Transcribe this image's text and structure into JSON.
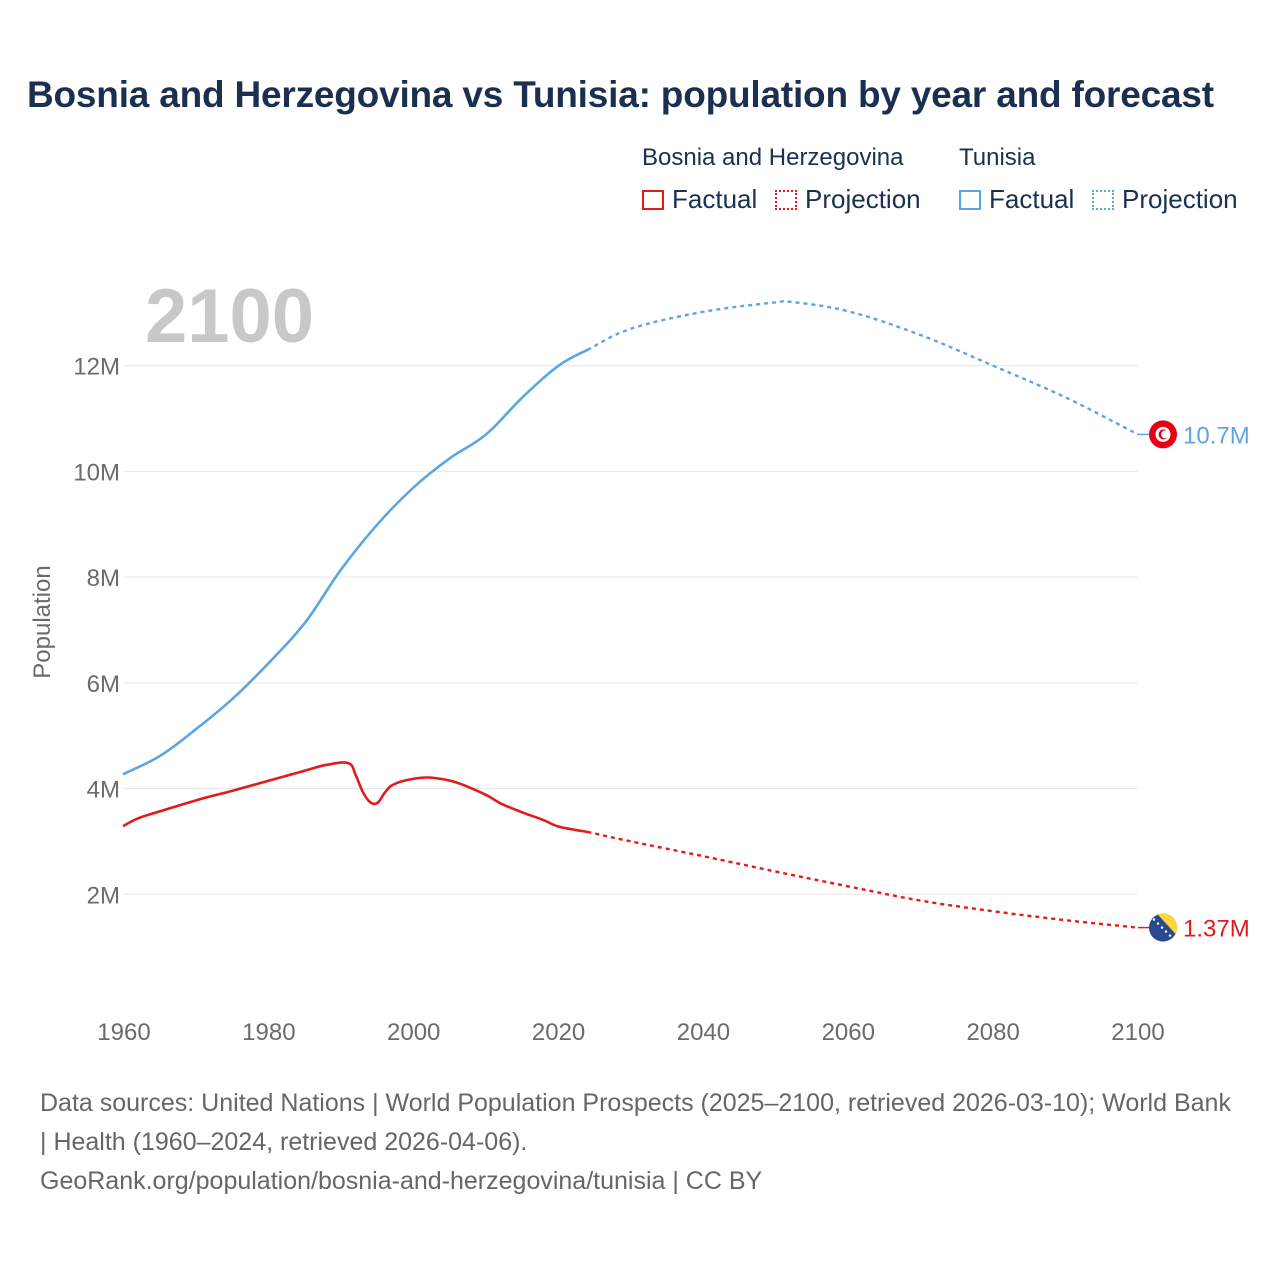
{
  "title": "Bosnia and Herzegovina vs Tunisia: population by year and forecast",
  "legend": {
    "groups": [
      {
        "name": "Bosnia and Herzegovina",
        "color": "#e31a1c",
        "factual_label": "Factual",
        "projection_label": "Projection"
      },
      {
        "name": "Tunisia",
        "color": "#5ca5e4",
        "factual_label": "Factual",
        "projection_label": "Projection"
      }
    ]
  },
  "year_watermark": "2100",
  "end_labels": {
    "tunisia": "10.7M",
    "bosnia": "1.37M"
  },
  "colors": {
    "bosnia": "#e31a1c",
    "tunisia": "#5ca5e4",
    "grid": "#e6e6e6",
    "tick_text": "#6b6b6b",
    "watermark": "#c8c8c8"
  },
  "icons": {
    "tunisia_marker": "tunisia-flag-icon",
    "bosnia_marker": "bosnia-flag-icon"
  },
  "source": {
    "line1": "Data sources: United Nations | World Population Prospects (2025–2100, retrieved 2026-03-10); World Bank | Health (1960–2024, retrieved 2026-04-06).",
    "line2": "GeoRank.org/population/bosnia-and-herzegovina/tunisia | CC BY"
  },
  "chart_data": {
    "type": "line",
    "title": "Bosnia and Herzegovina vs Tunisia: population by year and forecast",
    "xlabel": "",
    "ylabel": "Population",
    "xlim": [
      1960,
      2100
    ],
    "ylim": [
      0,
      14000000
    ],
    "x_ticks": [
      1960,
      1980,
      2000,
      2020,
      2040,
      2060,
      2080,
      2100
    ],
    "x_tick_labels": [
      "1960",
      "1980",
      "2000",
      "2020",
      "2040",
      "2060",
      "2080",
      "2100"
    ],
    "y_ticks": [
      2000000,
      4000000,
      6000000,
      8000000,
      10000000,
      12000000
    ],
    "y_tick_labels": [
      "2M",
      "4M",
      "6M",
      "8M",
      "10M",
      "12M"
    ],
    "grid": true,
    "legend_position": "top-right",
    "factual_end_year": 2024,
    "series": [
      {
        "name": "Tunisia",
        "color": "#5ca5e4",
        "points": [
          [
            1960,
            4280000
          ],
          [
            1965,
            4620000
          ],
          [
            1970,
            5130000
          ],
          [
            1975,
            5700000
          ],
          [
            1980,
            6380000
          ],
          [
            1985,
            7140000
          ],
          [
            1990,
            8150000
          ],
          [
            1995,
            9000000
          ],
          [
            2000,
            9700000
          ],
          [
            2005,
            10250000
          ],
          [
            2010,
            10700000
          ],
          [
            2015,
            11400000
          ],
          [
            2020,
            12000000
          ],
          [
            2024,
            12300000
          ],
          [
            2030,
            12700000
          ],
          [
            2040,
            13020000
          ],
          [
            2050,
            13200000
          ],
          [
            2052,
            13210000
          ],
          [
            2060,
            13030000
          ],
          [
            2070,
            12580000
          ],
          [
            2080,
            12000000
          ],
          [
            2090,
            11400000
          ],
          [
            2100,
            10700000
          ]
        ]
      },
      {
        "name": "Bosnia and Herzegovina",
        "color": "#e31a1c",
        "points": [
          [
            1960,
            3300000
          ],
          [
            1962,
            3440000
          ],
          [
            1965,
            3570000
          ],
          [
            1970,
            3780000
          ],
          [
            1975,
            3960000
          ],
          [
            1980,
            4150000
          ],
          [
            1985,
            4340000
          ],
          [
            1988,
            4450000
          ],
          [
            1991,
            4480000
          ],
          [
            1992,
            4250000
          ],
          [
            1993,
            3930000
          ],
          [
            1994,
            3740000
          ],
          [
            1995,
            3730000
          ],
          [
            1996,
            3920000
          ],
          [
            1997,
            4060000
          ],
          [
            1999,
            4160000
          ],
          [
            2002,
            4210000
          ],
          [
            2005,
            4150000
          ],
          [
            2007,
            4060000
          ],
          [
            2010,
            3880000
          ],
          [
            2012,
            3720000
          ],
          [
            2015,
            3550000
          ],
          [
            2018,
            3400000
          ],
          [
            2020,
            3280000
          ],
          [
            2024,
            3180000
          ],
          [
            2030,
            3000000
          ],
          [
            2040,
            2720000
          ],
          [
            2050,
            2430000
          ],
          [
            2060,
            2150000
          ],
          [
            2070,
            1880000
          ],
          [
            2080,
            1680000
          ],
          [
            2090,
            1510000
          ],
          [
            2100,
            1370000
          ]
        ]
      }
    ]
  }
}
